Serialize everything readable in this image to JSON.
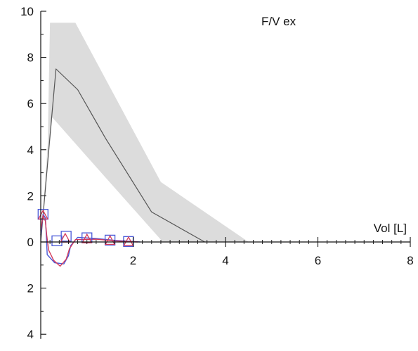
{
  "chart_data": {
    "type": "line",
    "title": "F/V  ex",
    "xlabel": "Vol [L]",
    "ylabel": "",
    "xlim": [
      0,
      8
    ],
    "ylim": [
      -4.2,
      10
    ],
    "y_tick_values": [
      10,
      8,
      6,
      4,
      2,
      0,
      -2,
      -4
    ],
    "y_tick_labels": [
      "10",
      "8",
      "6",
      "4",
      "2",
      "0",
      "2",
      "4"
    ],
    "x_tick_values": [
      2,
      4,
      6,
      8
    ],
    "x_tick_labels": [
      "2",
      "4",
      "6",
      "8"
    ],
    "grid": false,
    "colors": {
      "band": "#dcdcdc",
      "predicted": "#555555",
      "measured_blue": "#4a5ad8",
      "measured_red": "#d43a5a",
      "axis": "#111111"
    },
    "series": [
      {
        "kind": "band",
        "upper": [
          [
            0,
            0
          ],
          [
            0.15,
            4.2
          ],
          [
            0.2,
            9.5
          ],
          [
            0.75,
            9.5
          ],
          [
            2.6,
            2.6
          ],
          [
            4.5,
            0
          ]
        ],
        "lower": [
          [
            0,
            0
          ],
          [
            0.25,
            5.4
          ],
          [
            1.0,
            3.7
          ],
          [
            2.6,
            0.1
          ],
          [
            2.6,
            0
          ]
        ]
      },
      {
        "kind": "line",
        "color": "predicted",
        "points": [
          [
            0,
            0
          ],
          [
            0.2,
            4.6
          ],
          [
            0.33,
            7.5
          ],
          [
            0.8,
            6.6
          ],
          [
            1.4,
            4.5
          ],
          [
            2.4,
            1.3
          ],
          [
            3.55,
            0
          ]
        ]
      },
      {
        "kind": "line",
        "color": "measured_blue",
        "points": [
          [
            0,
            0.3
          ],
          [
            0.05,
            1.2
          ],
          [
            0.1,
            1.05
          ],
          [
            0.12,
            0.3
          ],
          [
            0.14,
            -0.55
          ],
          [
            0.3,
            -0.9
          ],
          [
            0.5,
            -0.95
          ],
          [
            0.6,
            -0.6
          ],
          [
            0.65,
            -0.15
          ],
          [
            0.8,
            0.2
          ],
          [
            1.2,
            0.15
          ],
          [
            1.6,
            0.07
          ],
          [
            2.0,
            0.02
          ],
          [
            2.15,
            0
          ]
        ]
      },
      {
        "kind": "line",
        "color": "measured_red",
        "points": [
          [
            0,
            0.5
          ],
          [
            0.05,
            1.15
          ],
          [
            0.1,
            0.9
          ],
          [
            0.13,
            0.3
          ],
          [
            0.17,
            -0.35
          ],
          [
            0.28,
            -0.8
          ],
          [
            0.42,
            -1.05
          ],
          [
            0.55,
            -0.75
          ],
          [
            0.62,
            -0.3
          ],
          [
            0.75,
            0.1
          ],
          [
            1.2,
            0.12
          ],
          [
            1.6,
            0.05
          ],
          [
            2.0,
            0.01
          ],
          [
            2.1,
            0
          ]
        ]
      }
    ],
    "markers": [
      {
        "shape": "square",
        "color": "measured_blue",
        "x": 0.05,
        "y": 1.2
      },
      {
        "shape": "triangle",
        "color": "measured_red",
        "x": 0.05,
        "y": 1.15
      },
      {
        "shape": "square",
        "color": "measured_blue",
        "x": 0.35,
        "y": 0.05
      },
      {
        "shape": "square",
        "color": "measured_blue",
        "x": 0.55,
        "y": 0.25
      },
      {
        "shape": "triangle",
        "color": "measured_red",
        "x": 0.53,
        "y": 0.15
      },
      {
        "shape": "square",
        "color": "measured_blue",
        "x": 1.0,
        "y": 0.18
      },
      {
        "shape": "triangle",
        "color": "measured_red",
        "x": 1.0,
        "y": 0.12
      },
      {
        "shape": "square",
        "color": "measured_blue",
        "x": 1.5,
        "y": 0.08
      },
      {
        "shape": "triangle",
        "color": "measured_red",
        "x": 1.5,
        "y": 0.05
      },
      {
        "shape": "square",
        "color": "measured_blue",
        "x": 1.9,
        "y": 0.02
      },
      {
        "shape": "triangle",
        "color": "measured_red",
        "x": 1.9,
        "y": 0.0
      }
    ]
  }
}
